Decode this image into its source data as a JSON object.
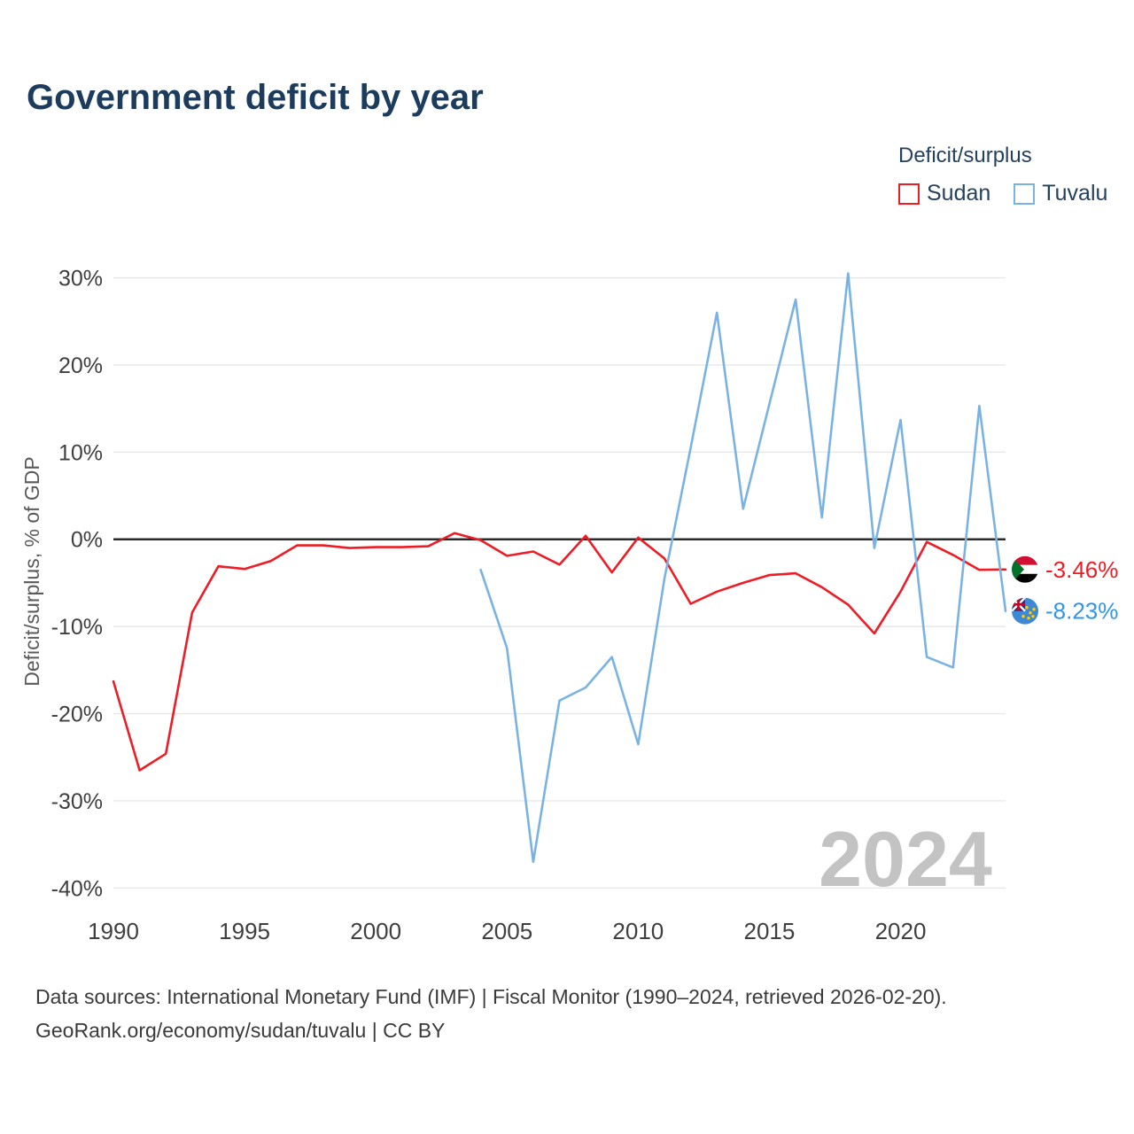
{
  "title": "Government deficit by year",
  "legend": {
    "title": "Deficit/surplus",
    "items": [
      {
        "label": "Sudan",
        "color": "#ee1c25"
      },
      {
        "label": "Tuvalu",
        "color": "#7ab3e3"
      }
    ]
  },
  "chart_data": {
    "type": "line",
    "title": "Government deficit by year",
    "xlabel": "",
    "ylabel": "Deficit/surplus, % of GDP",
    "xlim": [
      1990,
      2024
    ],
    "ylim": [
      -42,
      33
    ],
    "x_ticks": [
      1990,
      1995,
      2000,
      2005,
      2010,
      2015,
      2020
    ],
    "y_ticks": [
      30,
      20,
      10,
      0,
      -10,
      -20,
      -30,
      -40
    ],
    "grid": "horizontal",
    "legend_position": "top-right",
    "watermark": "2024",
    "series": [
      {
        "name": "Sudan",
        "color": "#ee1c25",
        "start_year": 1990,
        "values": [
          -16.3,
          -26.5,
          -24.6,
          -8.4,
          -3.1,
          -3.4,
          -2.5,
          -0.7,
          -0.7,
          -1.0,
          -0.9,
          -0.9,
          -0.8,
          0.7,
          -0.1,
          -1.9,
          -1.4,
          -2.9,
          0.4,
          -3.8,
          0.2,
          -2.2,
          -7.4,
          -6.0,
          -5.0,
          -4.1,
          -3.9,
          -5.5,
          -7.5,
          -10.8,
          -6.0,
          -0.3,
          -1.8,
          -3.5,
          -3.46
        ],
        "end_label": "-3.46%",
        "end_label_color": "#ee1c25",
        "flag": "sudan"
      },
      {
        "name": "Tuvalu",
        "color": "#7ab3e3",
        "start_year": 2004,
        "values": [
          -3.5,
          -12.5,
          -37.0,
          -18.5,
          -17.0,
          -13.5,
          -23.5,
          -4.5,
          10.5,
          26.0,
          3.5,
          15.5,
          27.5,
          2.5,
          30.5,
          -1.0,
          13.7,
          -13.5,
          -14.7,
          15.3,
          -8.23
        ],
        "end_label": "-8.23%",
        "end_label_color": "#2e96f0",
        "flag": "tuvalu"
      }
    ]
  },
  "footer": {
    "line1": "Data sources: International Monetary Fund (IMF) | Fiscal Monitor (1990–2024, retrieved 2026-02-20).",
    "line2": "GeoRank.org/economy/sudan/tuvalu | CC BY"
  }
}
